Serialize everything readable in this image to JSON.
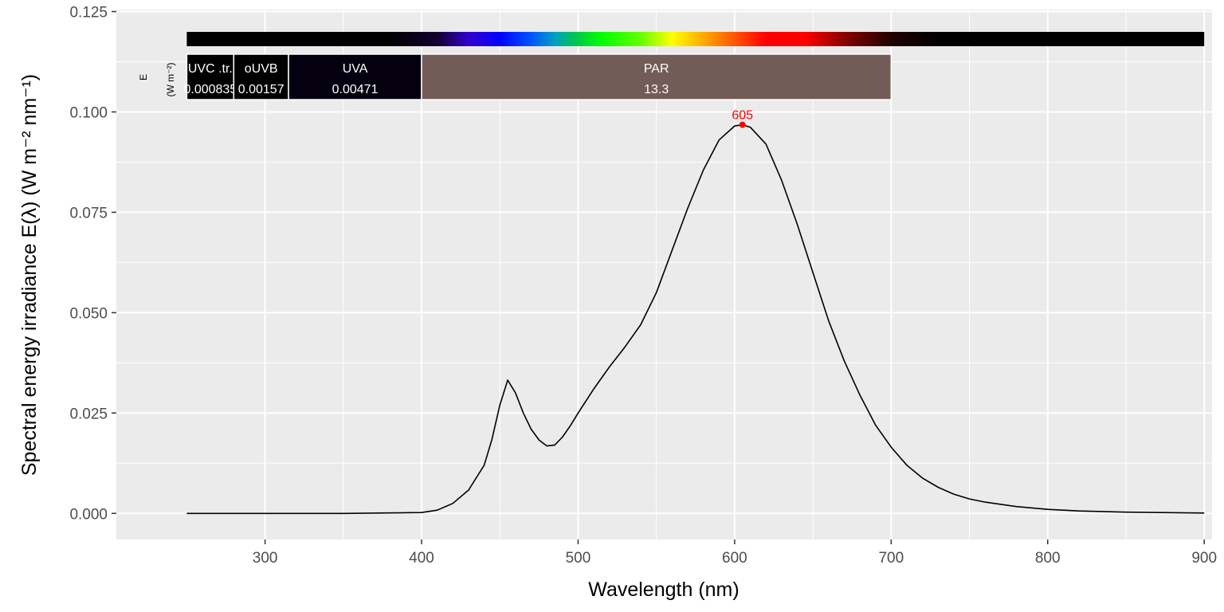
{
  "chart_data": {
    "type": "line",
    "xlabel": "Wavelength (nm)",
    "ylabel": "Spectral  energy  irradiance  E(λ)  (W m⁻² nm⁻¹)",
    "xlim": [
      205,
      905
    ],
    "ylim": [
      -0.0065,
      0.1255
    ],
    "x_ticks": [
      300,
      400,
      500,
      600,
      700,
      800,
      900
    ],
    "y_ticks": [
      0.0,
      0.025,
      0.05,
      0.075,
      0.1,
      0.125
    ],
    "y_tick_labels": [
      "0.000",
      "0.025",
      "0.050",
      "0.075",
      "0.100",
      "0.125"
    ],
    "grid": true,
    "series": [
      {
        "color": "#000000",
        "x": [
          250,
          300,
          350,
          400,
          410,
          420,
          430,
          440,
          445,
          450,
          455,
          460,
          465,
          470,
          475,
          480,
          485,
          490,
          495,
          500,
          510,
          520,
          530,
          540,
          550,
          560,
          570,
          580,
          590,
          600,
          605,
          610,
          620,
          630,
          640,
          650,
          660,
          670,
          680,
          690,
          700,
          710,
          720,
          730,
          740,
          750,
          760,
          780,
          800,
          820,
          850,
          900
        ],
        "y": [
          0.0,
          0.0,
          0.0,
          0.0002,
          0.0008,
          0.0025,
          0.0058,
          0.012,
          0.0185,
          0.027,
          0.0332,
          0.03,
          0.025,
          0.021,
          0.0183,
          0.0168,
          0.017,
          0.019,
          0.0218,
          0.025,
          0.031,
          0.0365,
          0.0415,
          0.047,
          0.055,
          0.0655,
          0.076,
          0.0855,
          0.093,
          0.0965,
          0.0968,
          0.0962,
          0.092,
          0.083,
          0.072,
          0.06,
          0.048,
          0.038,
          0.0295,
          0.022,
          0.0165,
          0.012,
          0.0088,
          0.0065,
          0.0048,
          0.0036,
          0.0028,
          0.0017,
          0.001,
          0.0006,
          0.0003,
          0.0001
        ]
      }
    ],
    "peak": {
      "x": 605,
      "y": 0.0968,
      "label": "605",
      "color": "#ff0000"
    },
    "spectrum_bar": {
      "range": [
        250,
        900
      ],
      "stops": [
        {
          "wl": 250,
          "color": "#000000"
        },
        {
          "wl": 380,
          "color": "#000000"
        },
        {
          "wl": 410,
          "color": "#140030"
        },
        {
          "wl": 430,
          "color": "#3300cc"
        },
        {
          "wl": 450,
          "color": "#0000ff"
        },
        {
          "wl": 470,
          "color": "#0055ff"
        },
        {
          "wl": 485,
          "color": "#00a0c0"
        },
        {
          "wl": 500,
          "color": "#00cc44"
        },
        {
          "wl": 515,
          "color": "#00ff00"
        },
        {
          "wl": 540,
          "color": "#66ff00"
        },
        {
          "wl": 560,
          "color": "#ffff00"
        },
        {
          "wl": 580,
          "color": "#ffaa00"
        },
        {
          "wl": 600,
          "color": "#ff5500"
        },
        {
          "wl": 620,
          "color": "#ff0000"
        },
        {
          "wl": 645,
          "color": "#ff0000"
        },
        {
          "wl": 670,
          "color": "#880000"
        },
        {
          "wl": 700,
          "color": "#200000"
        },
        {
          "wl": 730,
          "color": "#000000"
        },
        {
          "wl": 900,
          "color": "#000000"
        }
      ]
    },
    "bands": [
      {
        "name": "UVC .tr.",
        "value": "0.000835",
        "from": 250,
        "to": 280,
        "color": "#000000"
      },
      {
        "name": "oUVB",
        "value": "0.00157",
        "from": 280,
        "to": 315,
        "color": "#000000"
      },
      {
        "name": "UVA",
        "value": "0.00471",
        "from": 315,
        "to": 400,
        "color": "#04000f"
      },
      {
        "name": "PAR",
        "value": "13.3",
        "from": 400,
        "to": 700,
        "color": "#735b57"
      }
    ],
    "band_axis_label": "E",
    "band_axis_unit": "(W m⁻²)"
  }
}
